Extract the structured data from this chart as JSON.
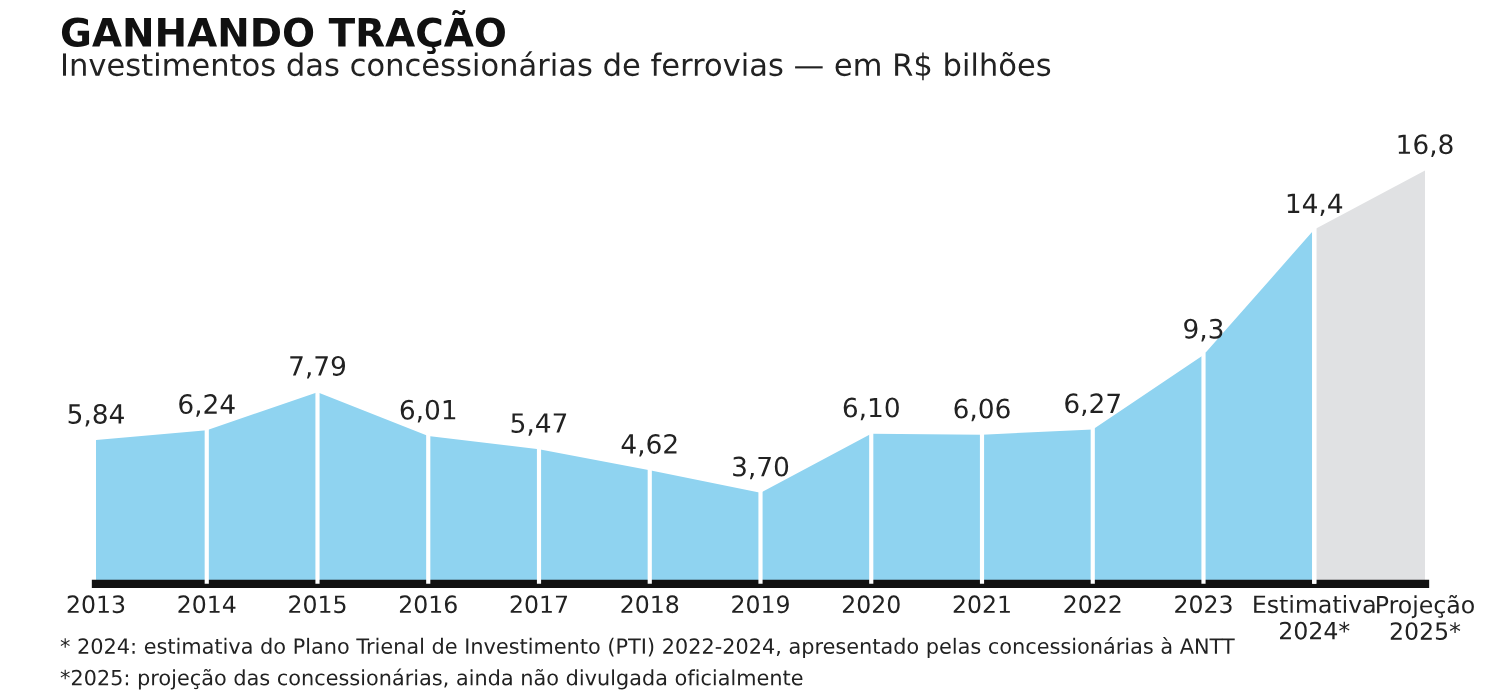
{
  "chart_data": {
    "type": "area",
    "title": "GANHANDO TRAÇÃO",
    "subtitle": "Investimentos das concessionárias de ferrovias — em R$ bilhões",
    "categories": [
      "2013",
      "2014",
      "2015",
      "2016",
      "2017",
      "2018",
      "2019",
      "2020",
      "2021",
      "2022",
      "2023",
      "Estimativa\n2024*",
      "Projeção\n2025*"
    ],
    "series": [
      {
        "color": "#8fd3f0",
        "values": [
          5.84,
          6.24,
          7.79,
          6.01,
          5.47,
          4.62,
          3.7,
          6.1,
          6.06,
          6.27,
          9.3,
          14.4,
          null
        ],
        "value_labels": [
          "5,84",
          "6,24",
          "7,79",
          "6,01",
          "5,47",
          "4,62",
          "3,70",
          "6,10",
          "6,06",
          "6,27",
          "9,3",
          "14,4",
          null
        ]
      },
      {
        "color": "#e0e1e3",
        "values": [
          null,
          null,
          null,
          null,
          null,
          null,
          null,
          null,
          null,
          null,
          null,
          14.4,
          16.8
        ],
        "value_labels": [
          null,
          null,
          null,
          null,
          null,
          null,
          null,
          null,
          null,
          null,
          null,
          null,
          "16,8"
        ]
      }
    ],
    "annotations": [
      "* 2024: estimativa do Plano Trienal de Investimento (PTI) 2022-2024, apresentado pelas concessionárias à ANTT",
      "*2025: projeção das concessionárias, ainda não divulgada oficialmente"
    ]
  }
}
